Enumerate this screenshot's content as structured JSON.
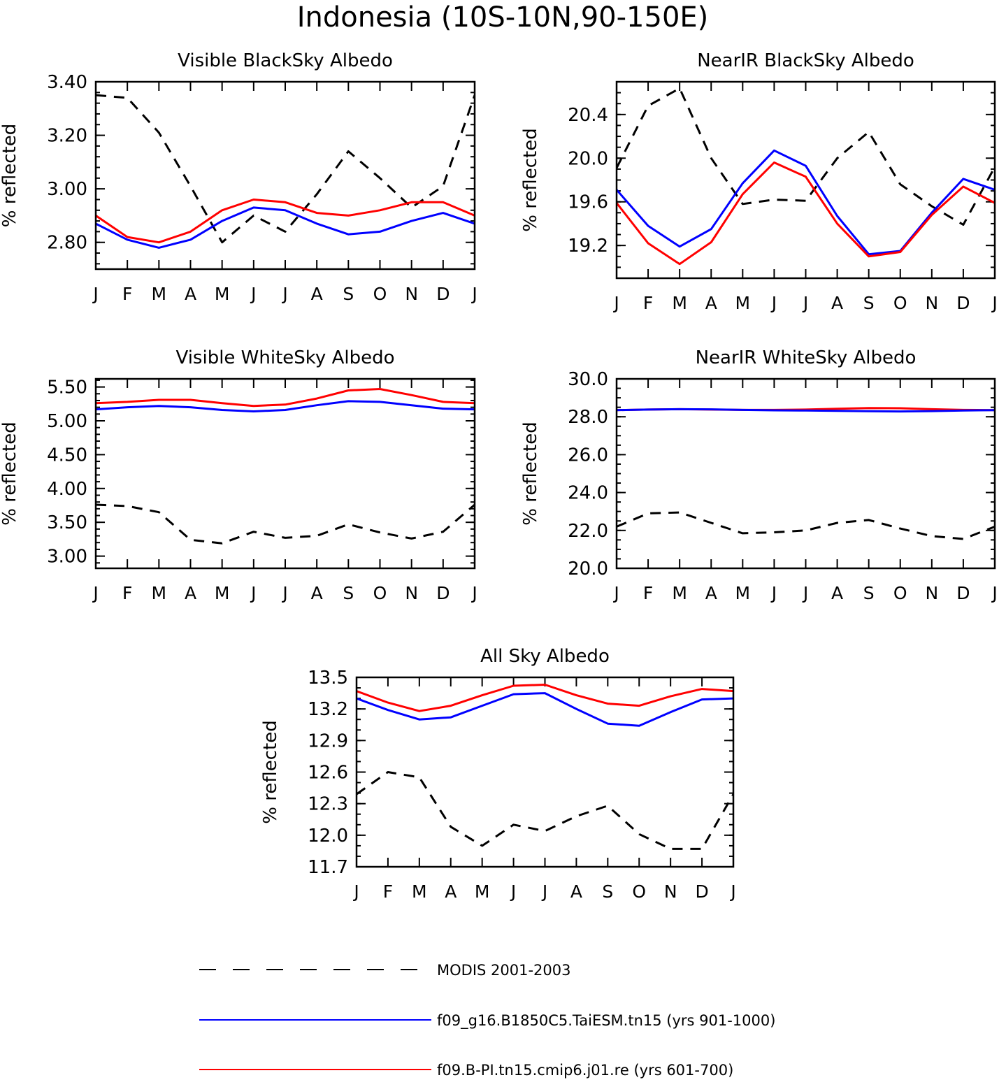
{
  "figure": {
    "title": "Indonesia (10S-10N,90-150E)"
  },
  "legend": [
    {
      "label": "MODIS 2001-2003",
      "color": "#000000",
      "dashed": true
    },
    {
      "label": "f09_g16.B1850C5.TaiESM.tn15 (yrs 901-1000)",
      "color": "#0000ff",
      "dashed": false
    },
    {
      "label": "f09.B-PI.tn15.cmip6.j01.re (yrs 601-700)",
      "color": "#ff0000",
      "dashed": false
    }
  ],
  "chart_data": [
    {
      "type": "line",
      "title": "Visible BlackSky Albedo",
      "xlabel": "",
      "ylabel": "% reflected",
      "categories": [
        "J",
        "F",
        "M",
        "A",
        "M",
        "J",
        "J",
        "A",
        "S",
        "O",
        "N",
        "D",
        "J"
      ],
      "ylim": [
        2.7,
        3.4
      ],
      "yticks": [
        2.8,
        3.0,
        3.2,
        3.4
      ],
      "ytick_labels": [
        "2.80",
        "3.00",
        "3.20",
        "3.40"
      ],
      "yminor": 0.04,
      "series": [
        {
          "name": "MODIS 2001-2003",
          "color": "#000000",
          "dashed": true,
          "values": [
            3.35,
            3.34,
            3.21,
            3.01,
            2.8,
            2.9,
            2.84,
            2.98,
            3.14,
            3.04,
            2.93,
            3.01,
            3.35
          ]
        },
        {
          "name": "f09_g16.B1850C5.TaiESM.tn15 (yrs 901-1000)",
          "color": "#0000ff",
          "dashed": false,
          "values": [
            2.87,
            2.81,
            2.78,
            2.81,
            2.88,
            2.93,
            2.92,
            2.87,
            2.83,
            2.84,
            2.88,
            2.91,
            2.87
          ]
        },
        {
          "name": "f09.B-PI.tn15.cmip6.j01.re (yrs 601-700)",
          "color": "#ff0000",
          "dashed": false,
          "values": [
            2.9,
            2.82,
            2.8,
            2.84,
            2.92,
            2.96,
            2.95,
            2.91,
            2.9,
            2.92,
            2.95,
            2.95,
            2.9
          ]
        }
      ]
    },
    {
      "type": "line",
      "title": "NearIR BlackSky Albedo",
      "xlabel": "",
      "ylabel": "% reflected",
      "categories": [
        "J",
        "F",
        "M",
        "A",
        "M",
        "J",
        "J",
        "A",
        "S",
        "O",
        "N",
        "D",
        "J"
      ],
      "ylim": [
        18.9,
        20.7
      ],
      "yticks": [
        19.2,
        19.6,
        20.0,
        20.4
      ],
      "ytick_labels": [
        "19.2",
        "19.6",
        "20.0",
        "20.4"
      ],
      "yminor": 0.1,
      "series": [
        {
          "name": "MODIS 2001-2003",
          "color": "#000000",
          "dashed": true,
          "values": [
            19.91,
            20.48,
            20.64,
            20.0,
            19.58,
            19.62,
            19.61,
            20.0,
            20.24,
            19.76,
            19.56,
            19.39,
            19.92
          ]
        },
        {
          "name": "f09_g16.B1850C5.TaiESM.tn15 (yrs 901-1000)",
          "color": "#0000ff",
          "dashed": false,
          "values": [
            19.71,
            19.38,
            19.19,
            19.35,
            19.77,
            20.07,
            19.93,
            19.47,
            19.12,
            19.15,
            19.5,
            19.81,
            19.71
          ]
        },
        {
          "name": "f09.B-PI.tn15.cmip6.j01.re (yrs 601-700)",
          "color": "#ff0000",
          "dashed": false,
          "values": [
            19.59,
            19.22,
            19.03,
            19.23,
            19.67,
            19.96,
            19.83,
            19.4,
            19.1,
            19.14,
            19.48,
            19.74,
            19.59
          ]
        }
      ]
    },
    {
      "type": "line",
      "title": "Visible WhiteSky Albedo",
      "xlabel": "",
      "ylabel": "% reflected",
      "categories": [
        "J",
        "F",
        "M",
        "A",
        "M",
        "J",
        "J",
        "A",
        "S",
        "O",
        "N",
        "D",
        "J"
      ],
      "ylim": [
        2.82,
        5.62
      ],
      "yticks": [
        3.0,
        3.5,
        4.0,
        4.5,
        5.0,
        5.5
      ],
      "ytick_labels": [
        "3.00",
        "3.50",
        "4.00",
        "4.50",
        "5.00",
        "5.50"
      ],
      "yminor": 0.1,
      "series": [
        {
          "name": "MODIS 2001-2003",
          "color": "#000000",
          "dashed": true,
          "values": [
            3.76,
            3.74,
            3.65,
            3.24,
            3.19,
            3.36,
            3.27,
            3.3,
            3.47,
            3.35,
            3.26,
            3.36,
            3.76
          ]
        },
        {
          "name": "f09_g16.B1850C5.TaiESM.tn15 (yrs 901-1000)",
          "color": "#0000ff",
          "dashed": false,
          "values": [
            5.17,
            5.2,
            5.22,
            5.2,
            5.16,
            5.14,
            5.16,
            5.23,
            5.29,
            5.28,
            5.23,
            5.18,
            5.17
          ]
        },
        {
          "name": "f09.B-PI.tn15.cmip6.j01.re (yrs 601-700)",
          "color": "#ff0000",
          "dashed": false,
          "values": [
            5.26,
            5.28,
            5.31,
            5.31,
            5.26,
            5.22,
            5.24,
            5.33,
            5.45,
            5.47,
            5.38,
            5.28,
            5.26
          ]
        }
      ]
    },
    {
      "type": "line",
      "title": "NearIR WhiteSky Albedo",
      "xlabel": "",
      "ylabel": "% reflected",
      "categories": [
        "J",
        "F",
        "M",
        "A",
        "M",
        "J",
        "J",
        "A",
        "S",
        "O",
        "N",
        "D",
        "J"
      ],
      "ylim": [
        20.0,
        30.0
      ],
      "yticks": [
        20.0,
        22.0,
        24.0,
        26.0,
        28.0,
        30.0
      ],
      "ytick_labels": [
        "20.0",
        "22.0",
        "24.0",
        "26.0",
        "28.0",
        "30.0"
      ],
      "yminor": 0.5,
      "series": [
        {
          "name": "MODIS 2001-2003",
          "color": "#000000",
          "dashed": true,
          "values": [
            22.2,
            22.9,
            22.95,
            22.4,
            21.85,
            21.9,
            22.0,
            22.4,
            22.55,
            22.1,
            21.7,
            21.55,
            22.2
          ]
        },
        {
          "name": "f09.B-PI.tn15.cmip6.j01.re (yrs 601-700)",
          "color": "#ff0000",
          "dashed": false,
          "values": [
            28.35,
            28.38,
            28.4,
            28.38,
            28.36,
            28.36,
            28.38,
            28.42,
            28.46,
            28.45,
            28.4,
            28.36,
            28.35
          ]
        },
        {
          "name": "f09_g16.B1850C5.TaiESM.tn15 (yrs 901-1000)",
          "color": "#0000ff",
          "dashed": false,
          "values": [
            28.35,
            28.38,
            28.4,
            28.39,
            28.36,
            28.34,
            28.33,
            28.31,
            28.29,
            28.28,
            28.3,
            28.33,
            28.35
          ]
        }
      ]
    },
    {
      "type": "line",
      "title": "All Sky Albedo",
      "xlabel": "",
      "ylabel": "% reflected",
      "categories": [
        "J",
        "F",
        "M",
        "A",
        "M",
        "J",
        "J",
        "A",
        "S",
        "O",
        "N",
        "D",
        "J"
      ],
      "ylim": [
        11.7,
        13.5
      ],
      "yticks": [
        11.7,
        12.0,
        12.3,
        12.6,
        12.9,
        13.2,
        13.5
      ],
      "ytick_labels": [
        "11.7",
        "12.0",
        "12.3",
        "12.6",
        "12.9",
        "13.2",
        "13.5"
      ],
      "yminor": 0.1,
      "series": [
        {
          "name": "MODIS 2001-2003",
          "color": "#000000",
          "dashed": true,
          "values": [
            12.39,
            12.6,
            12.55,
            12.08,
            11.9,
            12.1,
            12.04,
            12.18,
            12.28,
            12.01,
            11.87,
            11.87,
            12.39
          ]
        },
        {
          "name": "f09_g16.B1850C5.TaiESM.tn15 (yrs 901-1000)",
          "color": "#0000ff",
          "dashed": false,
          "values": [
            13.3,
            13.19,
            13.1,
            13.12,
            13.23,
            13.34,
            13.35,
            13.2,
            13.06,
            13.04,
            13.17,
            13.29,
            13.3
          ]
        },
        {
          "name": "f09.B-PI.tn15.cmip6.j01.re (yrs 601-700)",
          "color": "#ff0000",
          "dashed": false,
          "values": [
            13.37,
            13.26,
            13.18,
            13.23,
            13.33,
            13.42,
            13.43,
            13.33,
            13.25,
            13.23,
            13.32,
            13.39,
            13.37
          ]
        }
      ]
    }
  ]
}
